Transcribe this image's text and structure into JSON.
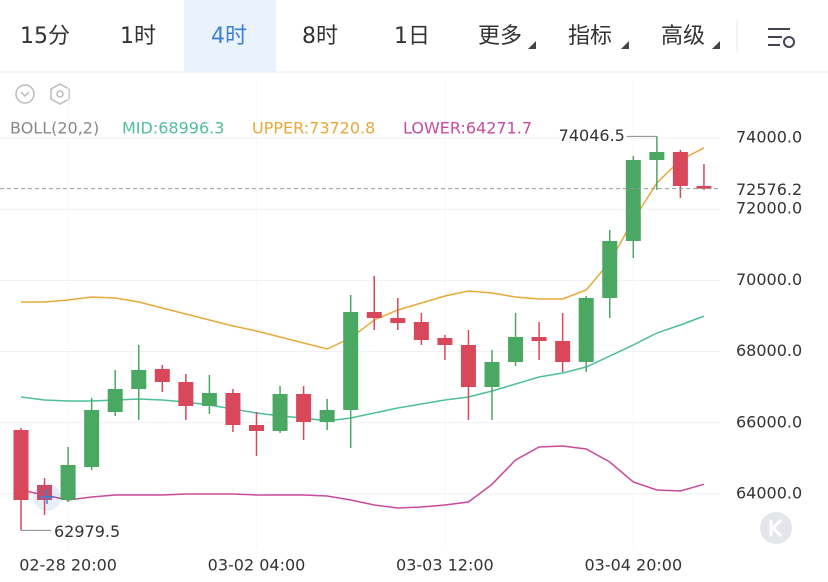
{
  "tabs": [
    "15分",
    "1时",
    "4时",
    "8时",
    "1日",
    "更多",
    "指标",
    "高级"
  ],
  "selected_tab": 2,
  "chart_data": {
    "type": "candlestick",
    "indicator": "BOLL(20,2)",
    "categories": [
      null,
      null,
      "02-28 20:00",
      null,
      null,
      null,
      null,
      null,
      null,
      null,
      "03-02 04:00",
      null,
      null,
      null,
      null,
      null,
      null,
      null,
      "03-03 12:00",
      null,
      null,
      null,
      null,
      null,
      null,
      null,
      "03-04 20:00",
      null,
      null,
      null
    ],
    "open": [
      65798,
      64253,
      63831,
      64758,
      66303,
      66949,
      67511,
      67146,
      66472,
      66837,
      65938,
      65770,
      66809,
      66022,
      66360,
      69112,
      68944,
      68831,
      68382,
      68185,
      67006,
      67708,
      68410,
      68298,
      67708,
      69506,
      71107,
      73382,
      73607,
      72652
    ],
    "close": [
      63831,
      63831,
      64815,
      66360,
      66949,
      67483,
      67146,
      66472,
      66837,
      65938,
      65770,
      66809,
      66022,
      66360,
      69112,
      68944,
      68803,
      68326,
      68185,
      67006,
      67708,
      68410,
      68298,
      67708,
      69506,
      71107,
      73382,
      73607,
      72652,
      72576.2
    ],
    "high": [
      65854,
      64449,
      65320,
      66697,
      67483,
      68185,
      67624,
      67371,
      67343,
      66949,
      66303,
      67034,
      67034,
      66669,
      69590,
      70124,
      69506,
      69084,
      68466,
      68607,
      68045,
      69084,
      68831,
      69084,
      69562,
      71416,
      73494,
      74046.5,
      73663,
      73270
    ],
    "low": [
      62979.5,
      63410,
      63775,
      64674,
      66191,
      66079,
      66865,
      66079,
      66247,
      65742,
      65067,
      65713,
      65517,
      65798,
      65292,
      68607,
      68607,
      68185,
      67764,
      66079,
      66079,
      67595,
      67764,
      67427,
      67427,
      68944,
      70629,
      72539,
      72315,
      72539
    ],
    "up_color": "#4aa862",
    "down_color": "#d9475a",
    "series": [
      {
        "name": "MID",
        "legend": "MID:68996.3",
        "color": "#4fbf98",
        "values": [
          66725,
          66640,
          66612,
          66612,
          66640,
          66669,
          66640,
          66584,
          66500,
          66388,
          66275,
          66191,
          66135,
          66051,
          66135,
          66275,
          66416,
          66528,
          66640,
          66725,
          66893,
          67090,
          67286,
          67399,
          67567,
          67876,
          68185,
          68522,
          68747,
          68996.3
        ]
      },
      {
        "name": "UPPER",
        "legend": "UPPER:73720.8",
        "color": "#e8a93a",
        "values": [
          69393,
          69393,
          69449,
          69534,
          69506,
          69393,
          69225,
          69056,
          68888,
          68719,
          68579,
          68410,
          68242,
          68073,
          68382,
          68888,
          69169,
          69365,
          69562,
          69702,
          69646,
          69534,
          69478,
          69478,
          69730,
          70517,
          71697,
          72736,
          73382,
          73720.8
        ]
      },
      {
        "name": "LOWER",
        "legend": "LOWER:64271.7",
        "color": "#c94a9c",
        "values": [
          64112,
          63972,
          63831,
          63916,
          63972,
          63972,
          63972,
          64000,
          64000,
          64000,
          63972,
          63972,
          63972,
          63944,
          63831,
          63691,
          63607,
          63635,
          63691,
          63775,
          64272,
          64955,
          65320,
          65348,
          65264,
          64899,
          64337,
          64112,
          64084,
          64271.7
        ]
      }
    ],
    "current_price": 72576.2,
    "ylim": [
      62500,
      75000
    ],
    "yticks": [
      {
        "value": 64000,
        "label": "64000.0"
      },
      {
        "value": 66000,
        "label": "66000.0"
      },
      {
        "value": 68000,
        "label": "68000.0"
      },
      {
        "value": 70000,
        "label": "70000.0"
      },
      {
        "value": 72000,
        "label": "72000.0"
      },
      {
        "value": 74000,
        "label": "74000.0"
      }
    ],
    "grid": true
  }
}
